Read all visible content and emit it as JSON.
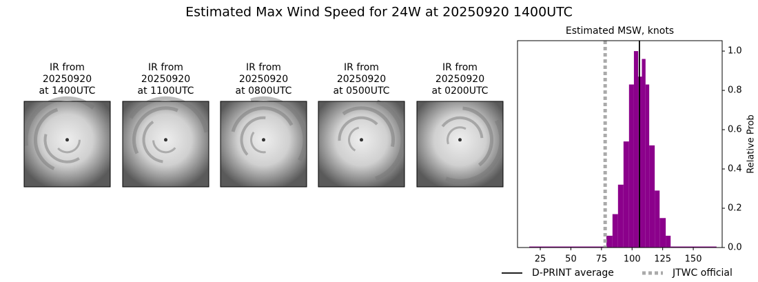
{
  "title": "Estimated Max Wind Speed for 24W at 20250920 1400UTC",
  "panels": [
    {
      "lines": [
        "IR from",
        "20250920",
        "at 1400UTC"
      ]
    },
    {
      "lines": [
        "IR from",
        "20250920",
        "at 1100UTC"
      ]
    },
    {
      "lines": [
        "IR from",
        "20250920",
        "at 0800UTC"
      ]
    },
    {
      "lines": [
        "IR from",
        "20250920",
        "at 0500UTC"
      ]
    },
    {
      "lines": [
        "IR from",
        "20250920",
        "at 0200UTC"
      ]
    }
  ],
  "chart_data": {
    "type": "histogram",
    "title": "Estimated MSW, knots",
    "ylabel": "Relative Prob",
    "bins": [
      16,
      79,
      84,
      88.5,
      93,
      97.5,
      101.5,
      105,
      108,
      111,
      114,
      118.5,
      122.5,
      127.5,
      131.5,
      169
    ],
    "counts": [
      0.005,
      0.06,
      0.17,
      0.32,
      0.54,
      0.83,
      1.0,
      0.87,
      0.96,
      0.83,
      0.52,
      0.29,
      0.15,
      0.06,
      0.005
    ],
    "color": "#8b008b",
    "xlim": [
      6.4,
      173.6
    ],
    "xticks": [
      25,
      50,
      75,
      100,
      125,
      150
    ],
    "ylim": [
      0,
      1.053
    ],
    "yticks": [
      {
        "value": 0,
        "label": "0.0"
      },
      0.2,
      0.4,
      0.6,
      0.8,
      {
        "value": 1,
        "label": "1.0"
      }
    ],
    "yaxis_side": "right",
    "reference_lines": [
      {
        "name": "D-PRINT average",
        "value": 106,
        "color": "#000000",
        "style": "solid"
      },
      {
        "name": "JTWC official",
        "value": 78,
        "color": "#aaaaaa",
        "style": "dotted"
      }
    ],
    "legend": "lower center"
  }
}
